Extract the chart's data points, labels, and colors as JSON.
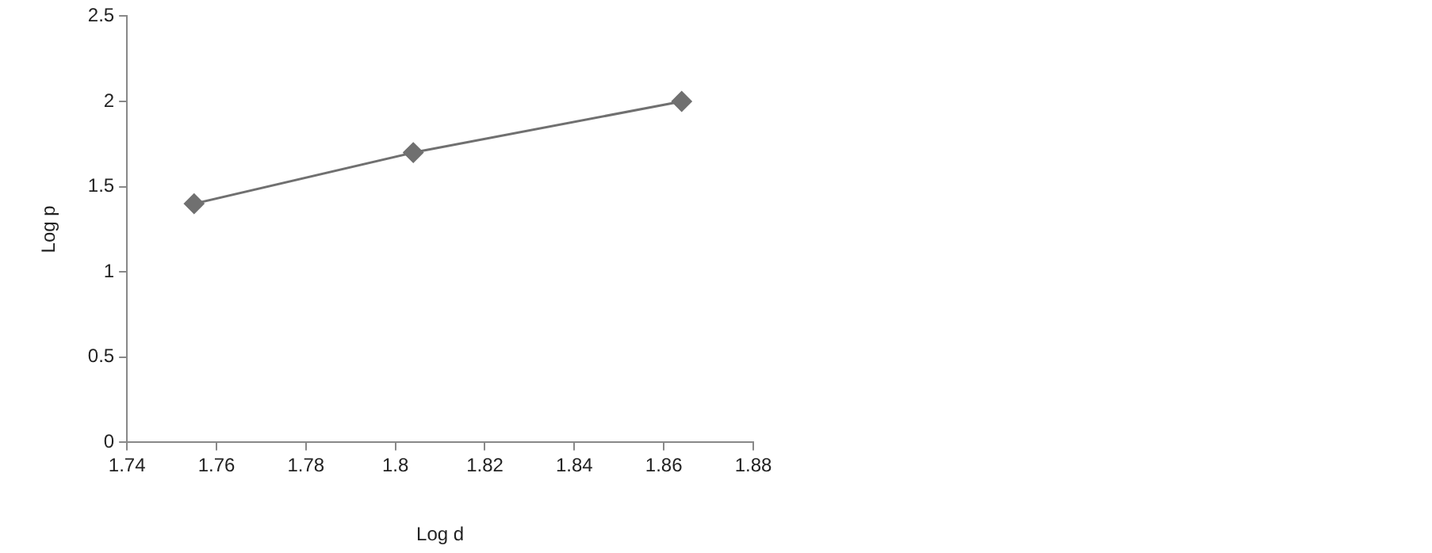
{
  "chart_data": {
    "type": "line",
    "xlabel": "Log d",
    "ylabel": "Log p",
    "x": [
      1.755,
      1.804,
      1.864
    ],
    "series": [
      {
        "color": "#707070",
        "values": [
          1.4,
          1.7,
          2.0
        ]
      }
    ],
    "xlim": [
      1.74,
      1.88
    ],
    "xticks": [
      1.74,
      1.76,
      1.78,
      1.8,
      1.82,
      1.84,
      1.86,
      1.88
    ],
    "ylim": [
      0,
      2.5
    ],
    "yticks": [
      0,
      0.5,
      1,
      1.5,
      2,
      2.5
    ],
    "grid": false,
    "legend": false,
    "marker": "diamond",
    "line_style": "solid"
  }
}
